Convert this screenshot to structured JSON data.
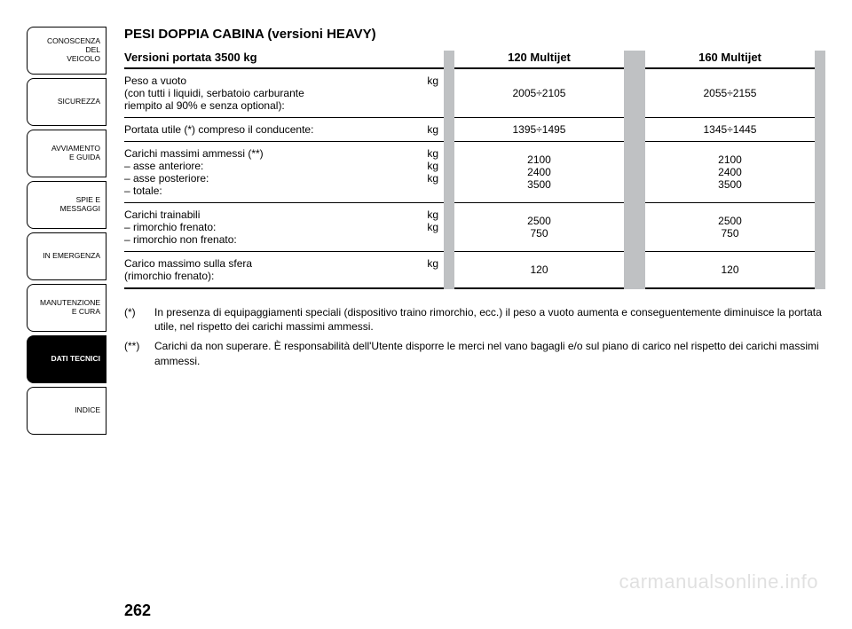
{
  "colors": {
    "band": "#bfc1c3",
    "active_bg": "#000000",
    "active_fg": "#ffffff",
    "text": "#000000",
    "rule": "#000000",
    "page_bg": "#ffffff",
    "watermark": "rgba(0,0,0,0.12)"
  },
  "sidebar": {
    "items": [
      {
        "label": "CONOSCENZA\nDEL\nVEICOLO",
        "active": false
      },
      {
        "label": "SICUREZZA",
        "active": false
      },
      {
        "label": "AVVIAMENTO\nE GUIDA",
        "active": false
      },
      {
        "label": "SPIE E\nMESSAGGI",
        "active": false
      },
      {
        "label": "IN EMERGENZA",
        "active": false
      },
      {
        "label": "MANUTENZIONE\nE CURA",
        "active": false
      },
      {
        "label": "DATI TECNICI",
        "active": true
      },
      {
        "label": "INDICE",
        "active": false
      }
    ]
  },
  "title": "PESI DOPPIA CABINA (versioni HEAVY)",
  "table": {
    "header": {
      "label": "Versioni portata 3500 kg",
      "col1": "120 Multijet",
      "col2": "160 Multijet"
    },
    "unit": "kg",
    "rows": [
      {
        "lines": [
          "Peso a vuoto",
          "(con tutti i liquidi, serbatoio carburante",
          "riempito al 90% e senza optional):"
        ],
        "units": [
          "",
          "",
          "kg"
        ],
        "col1": [
          "2005÷2105"
        ],
        "col2": [
          "2055÷2155"
        ]
      },
      {
        "lines": [
          "Portata utile (*) compreso il conducente:"
        ],
        "units": [
          "kg"
        ],
        "col1": [
          "1395÷1495"
        ],
        "col2": [
          "1345÷1445"
        ]
      },
      {
        "lines": [
          "Carichi massimi ammessi (**)",
          "– asse anteriore:",
          "– asse posteriore:",
          "– totale:"
        ],
        "units": [
          "",
          "kg",
          "kg",
          "kg"
        ],
        "col1": [
          "",
          "2100",
          "2400",
          "3500"
        ],
        "col2": [
          "",
          "2100",
          "2400",
          "3500"
        ]
      },
      {
        "lines": [
          "Carichi trainabili",
          "– rimorchio frenato:",
          "– rimorchio non frenato:"
        ],
        "units": [
          "",
          "kg",
          "kg"
        ],
        "col1": [
          "",
          "2500",
          "750"
        ],
        "col2": [
          "",
          "2500",
          "750"
        ]
      },
      {
        "lines": [
          "Carico massimo sulla sfera",
          "(rimorchio frenato):"
        ],
        "units": [
          "",
          "kg"
        ],
        "col1": [
          "",
          "120"
        ],
        "col2": [
          "",
          "120"
        ]
      }
    ]
  },
  "notes": [
    {
      "mark": "(*)",
      "text": "In presenza di equipaggiamenti speciali (dispositivo traino rimorchio, ecc.) il peso a vuoto aumenta e conseguentemente diminuisce la portata utile, nel rispetto dei carichi massimi ammessi."
    },
    {
      "mark": "(**)",
      "text": "Carichi da non superare. È responsabilità dell'Utente disporre le merci nel vano bagagli e/o sul piano di carico nel rispetto dei carichi massimi ammessi."
    }
  ],
  "page_number": "262",
  "watermark": "carmanualsonline.info"
}
